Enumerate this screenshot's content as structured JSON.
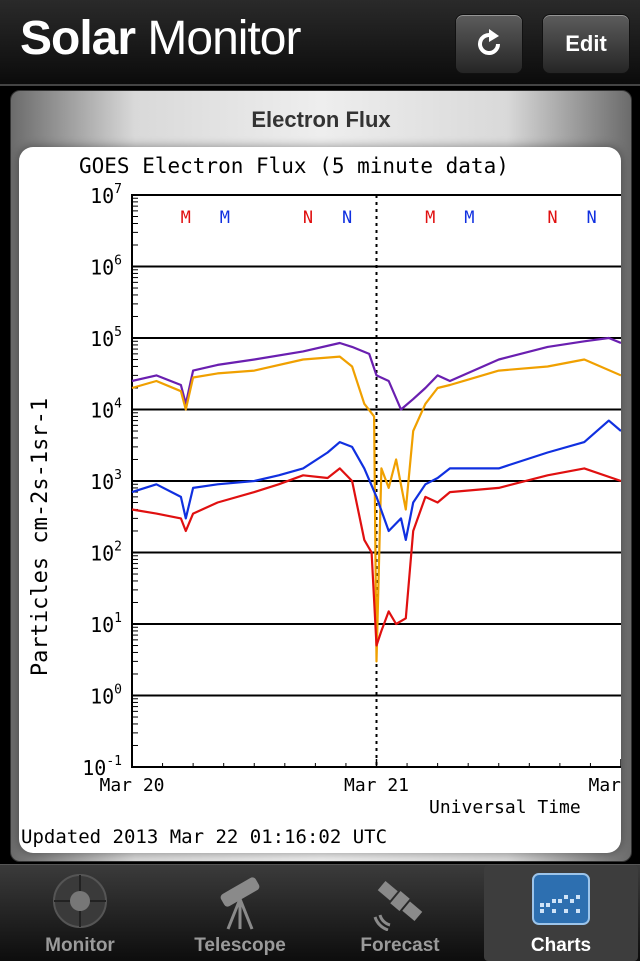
{
  "header": {
    "title_bold": "Solar",
    "title_light": " Monitor",
    "edit_label": "Edit"
  },
  "panel": {
    "title": "Electron Flux"
  },
  "chart_data": {
    "type": "line",
    "title": "GOES Electron Flux (5 minute data)",
    "ylabel": "Particles cm-2s-1sr-1",
    "xlabel": "Universal Time",
    "updated": "Updated 2013 Mar 22 01:16:02 UTC",
    "y_scale": "log",
    "ylim": [
      0.1,
      10000000
    ],
    "y_ticks": [
      {
        "base": "10",
        "exp": "7"
      },
      {
        "base": "10",
        "exp": "6"
      },
      {
        "base": "10",
        "exp": "5"
      },
      {
        "base": "10",
        "exp": "4"
      },
      {
        "base": "10",
        "exp": "3"
      },
      {
        "base": "10",
        "exp": "2"
      },
      {
        "base": "10",
        "exp": "1"
      },
      {
        "base": "10",
        "exp": "0"
      },
      {
        "base": "10",
        "exp": "-1"
      }
    ],
    "x_ticks": [
      "Mar 20",
      "Mar 21",
      "Mar"
    ],
    "xlim_days": [
      0,
      2
    ],
    "threshold": 1000,
    "markers": [
      {
        "label": "M",
        "color": "#e01010",
        "day": 0.22
      },
      {
        "label": "M",
        "color": "#1030e0",
        "day": 0.38
      },
      {
        "label": "N",
        "color": "#e01010",
        "day": 0.72
      },
      {
        "label": "N",
        "color": "#1030e0",
        "day": 0.88
      },
      {
        "label": "M",
        "color": "#e01010",
        "day": 1.22
      },
      {
        "label": "M",
        "color": "#1030e0",
        "day": 1.38
      },
      {
        "label": "N",
        "color": "#e01010",
        "day": 1.72
      },
      {
        "label": "N",
        "color": "#1030e0",
        "day": 1.88
      }
    ],
    "series": [
      {
        "color": "#6a1fb0",
        "x": [
          0,
          0.1,
          0.2,
          0.22,
          0.25,
          0.35,
          0.5,
          0.7,
          0.85,
          0.9,
          0.97,
          1.0,
          1.05,
          1.1,
          1.15,
          1.2,
          1.25,
          1.3,
          1.5,
          1.7,
          1.85,
          1.95,
          2.0
        ],
        "y": [
          25000,
          30000,
          22000,
          12000,
          35000,
          42000,
          50000,
          65000,
          85000,
          75000,
          60000,
          30000,
          25000,
          10000,
          14000,
          20000,
          30000,
          25000,
          50000,
          75000,
          90000,
          100000,
          85000
        ]
      },
      {
        "color": "#f0a000",
        "x": [
          0,
          0.1,
          0.2,
          0.22,
          0.25,
          0.35,
          0.5,
          0.7,
          0.85,
          0.9,
          0.95,
          0.99,
          1.0,
          1.02,
          1.05,
          1.08,
          1.12,
          1.15,
          1.2,
          1.25,
          1.3,
          1.5,
          1.7,
          1.85,
          2.0
        ],
        "y": [
          20000,
          25000,
          18000,
          10000,
          28000,
          32000,
          35000,
          50000,
          55000,
          40000,
          12000,
          8000,
          3,
          1500,
          800,
          2000,
          400,
          5000,
          12000,
          20000,
          22000,
          35000,
          40000,
          50000,
          30000
        ]
      },
      {
        "color": "#1030e0",
        "x": [
          0,
          0.1,
          0.2,
          0.22,
          0.25,
          0.35,
          0.5,
          0.6,
          0.7,
          0.8,
          0.85,
          0.9,
          0.95,
          1.0,
          1.05,
          1.1,
          1.12,
          1.15,
          1.2,
          1.25,
          1.3,
          1.5,
          1.7,
          1.85,
          1.95,
          2.0
        ],
        "y": [
          700,
          900,
          600,
          300,
          800,
          900,
          1000,
          1200,
          1500,
          2500,
          3500,
          3000,
          1500,
          600,
          200,
          300,
          150,
          500,
          900,
          1100,
          1500,
          1500,
          2500,
          3500,
          7000,
          5000
        ]
      },
      {
        "color": "#e01010",
        "x": [
          0,
          0.1,
          0.2,
          0.22,
          0.25,
          0.35,
          0.5,
          0.6,
          0.7,
          0.8,
          0.85,
          0.9,
          0.95,
          0.98,
          1.0,
          1.02,
          1.05,
          1.08,
          1.12,
          1.15,
          1.2,
          1.25,
          1.3,
          1.5,
          1.7,
          1.85,
          2.0
        ],
        "y": [
          400,
          350,
          300,
          200,
          350,
          500,
          700,
          900,
          1200,
          1100,
          1500,
          1000,
          150,
          100,
          5,
          8,
          15,
          10,
          12,
          200,
          600,
          500,
          700,
          800,
          1200,
          1500,
          1000
        ]
      }
    ]
  },
  "tabs": [
    {
      "label": "Monitor"
    },
    {
      "label": "Telescope"
    },
    {
      "label": "Forecast"
    },
    {
      "label": "Charts"
    }
  ]
}
